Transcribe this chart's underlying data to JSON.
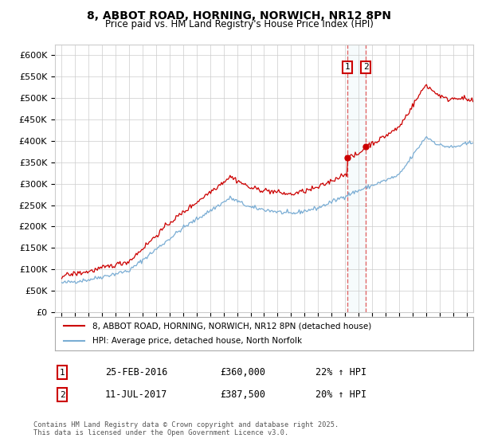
{
  "title": "8, ABBOT ROAD, HORNING, NORWICH, NR12 8PN",
  "subtitle": "Price paid vs. HM Land Registry's House Price Index (HPI)",
  "legend_line1": "8, ABBOT ROAD, HORNING, NORWICH, NR12 8PN (detached house)",
  "legend_line2": "HPI: Average price, detached house, North Norfolk",
  "sale1_date": "25-FEB-2016",
  "sale1_price": "£360,000",
  "sale1_hpi": "22% ↑ HPI",
  "sale1_year": 2016.15,
  "sale1_value": 360000,
  "sale2_date": "11-JUL-2017",
  "sale2_price": "£387,500",
  "sale2_hpi": "20% ↑ HPI",
  "sale2_year": 2017.54,
  "sale2_value": 387500,
  "red_color": "#cc0000",
  "blue_color": "#7aadd4",
  "vline_color": "#dd4444",
  "grid_color": "#cccccc",
  "background_color": "#ffffff",
  "footer": "Contains HM Land Registry data © Crown copyright and database right 2025.\nThis data is licensed under the Open Government Licence v3.0.",
  "ylim": [
    0,
    625000
  ],
  "yticks": [
    0,
    50000,
    100000,
    150000,
    200000,
    250000,
    300000,
    350000,
    400000,
    450000,
    500000,
    550000,
    600000
  ],
  "xlim_start": 1994.5,
  "xlim_end": 2025.5
}
